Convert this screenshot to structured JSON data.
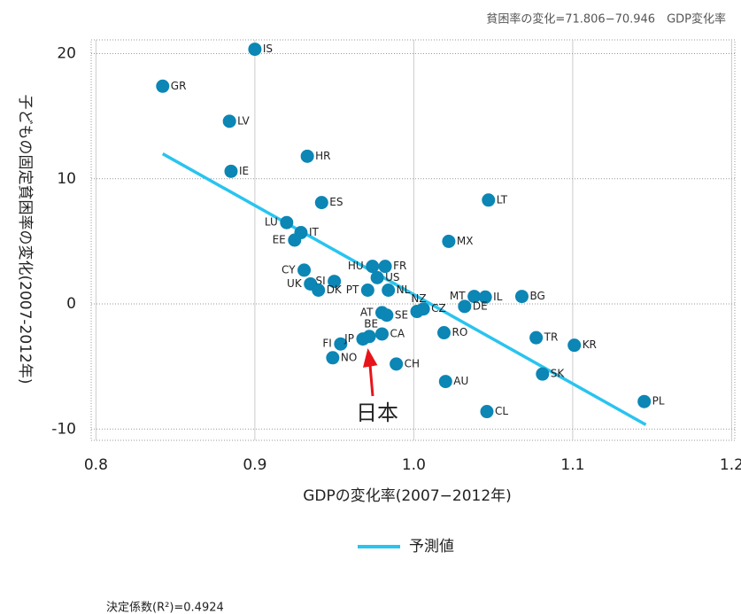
{
  "chart_data": {
    "type": "scatter",
    "subtitle": "貧困率の変化=71.806−70.946　GDP変化率",
    "xlabel": "GDPの変化率(2007−2012年)",
    "ylabel": "子どもの固定貧困率の変化(2007-2012年)",
    "note": "決定係数(R²)=0.4924",
    "annotation": "日本",
    "xlim": [
      0.797,
      1.202
    ],
    "ylim": [
      -10.9,
      21.1
    ],
    "xticks": [
      0.8,
      0.9,
      {
        "value": 1,
        "label": "1.0"
      },
      1.1,
      1.2
    ],
    "yticks": [
      -10,
      0,
      10,
      20
    ],
    "grid": true,
    "color": "#0b86b5",
    "labels": [
      "IS",
      "GR",
      "LV",
      "HR",
      "IE",
      "ES",
      "LT",
      "LU",
      "IT",
      "EE",
      "MX",
      "CY",
      "HU",
      "FR",
      "US",
      "UK",
      "SI",
      "DK",
      "PT",
      "NL",
      "NZ",
      "AT",
      "SE",
      "CZ",
      "MT",
      "IL",
      "DE",
      "BG",
      "FI",
      "JP",
      "BE",
      "CA",
      "RO",
      "TR",
      "KR",
      "NO",
      "CH",
      "AU",
      "SK",
      "CL",
      "PL"
    ],
    "x": [
      0.9,
      0.842,
      0.884,
      0.933,
      0.885,
      0.942,
      1.047,
      0.92,
      0.929,
      0.925,
      1.022,
      0.931,
      0.974,
      0.982,
      0.977,
      0.935,
      0.95,
      0.94,
      0.971,
      0.984,
      1.002,
      0.98,
      0.983,
      1.006,
      1.038,
      1.045,
      1.032,
      1.068,
      0.954,
      0.968,
      0.972,
      0.98,
      1.019,
      1.077,
      1.101,
      0.949,
      0.989,
      1.02,
      1.081,
      1.046,
      1.145
    ],
    "y": [
      20.35,
      17.4,
      14.6,
      11.8,
      10.6,
      8.1,
      8.3,
      6.5,
      5.7,
      5.1,
      5.0,
      2.7,
      3.0,
      3.0,
      2.1,
      1.6,
      1.8,
      1.1,
      1.1,
      1.1,
      -0.6,
      -0.7,
      -0.9,
      -0.4,
      0.6,
      0.55,
      -0.2,
      0.6,
      -3.2,
      -2.8,
      -2.6,
      -2.4,
      -2.3,
      -2.7,
      -3.3,
      -4.3,
      -4.8,
      -6.2,
      -5.6,
      -8.6,
      -7.8
    ],
    "trendline": {
      "name": "予測値",
      "color": "#29c4ef",
      "x": [
        0.842,
        1.146
      ],
      "y": [
        12.0,
        -9.65
      ]
    }
  }
}
